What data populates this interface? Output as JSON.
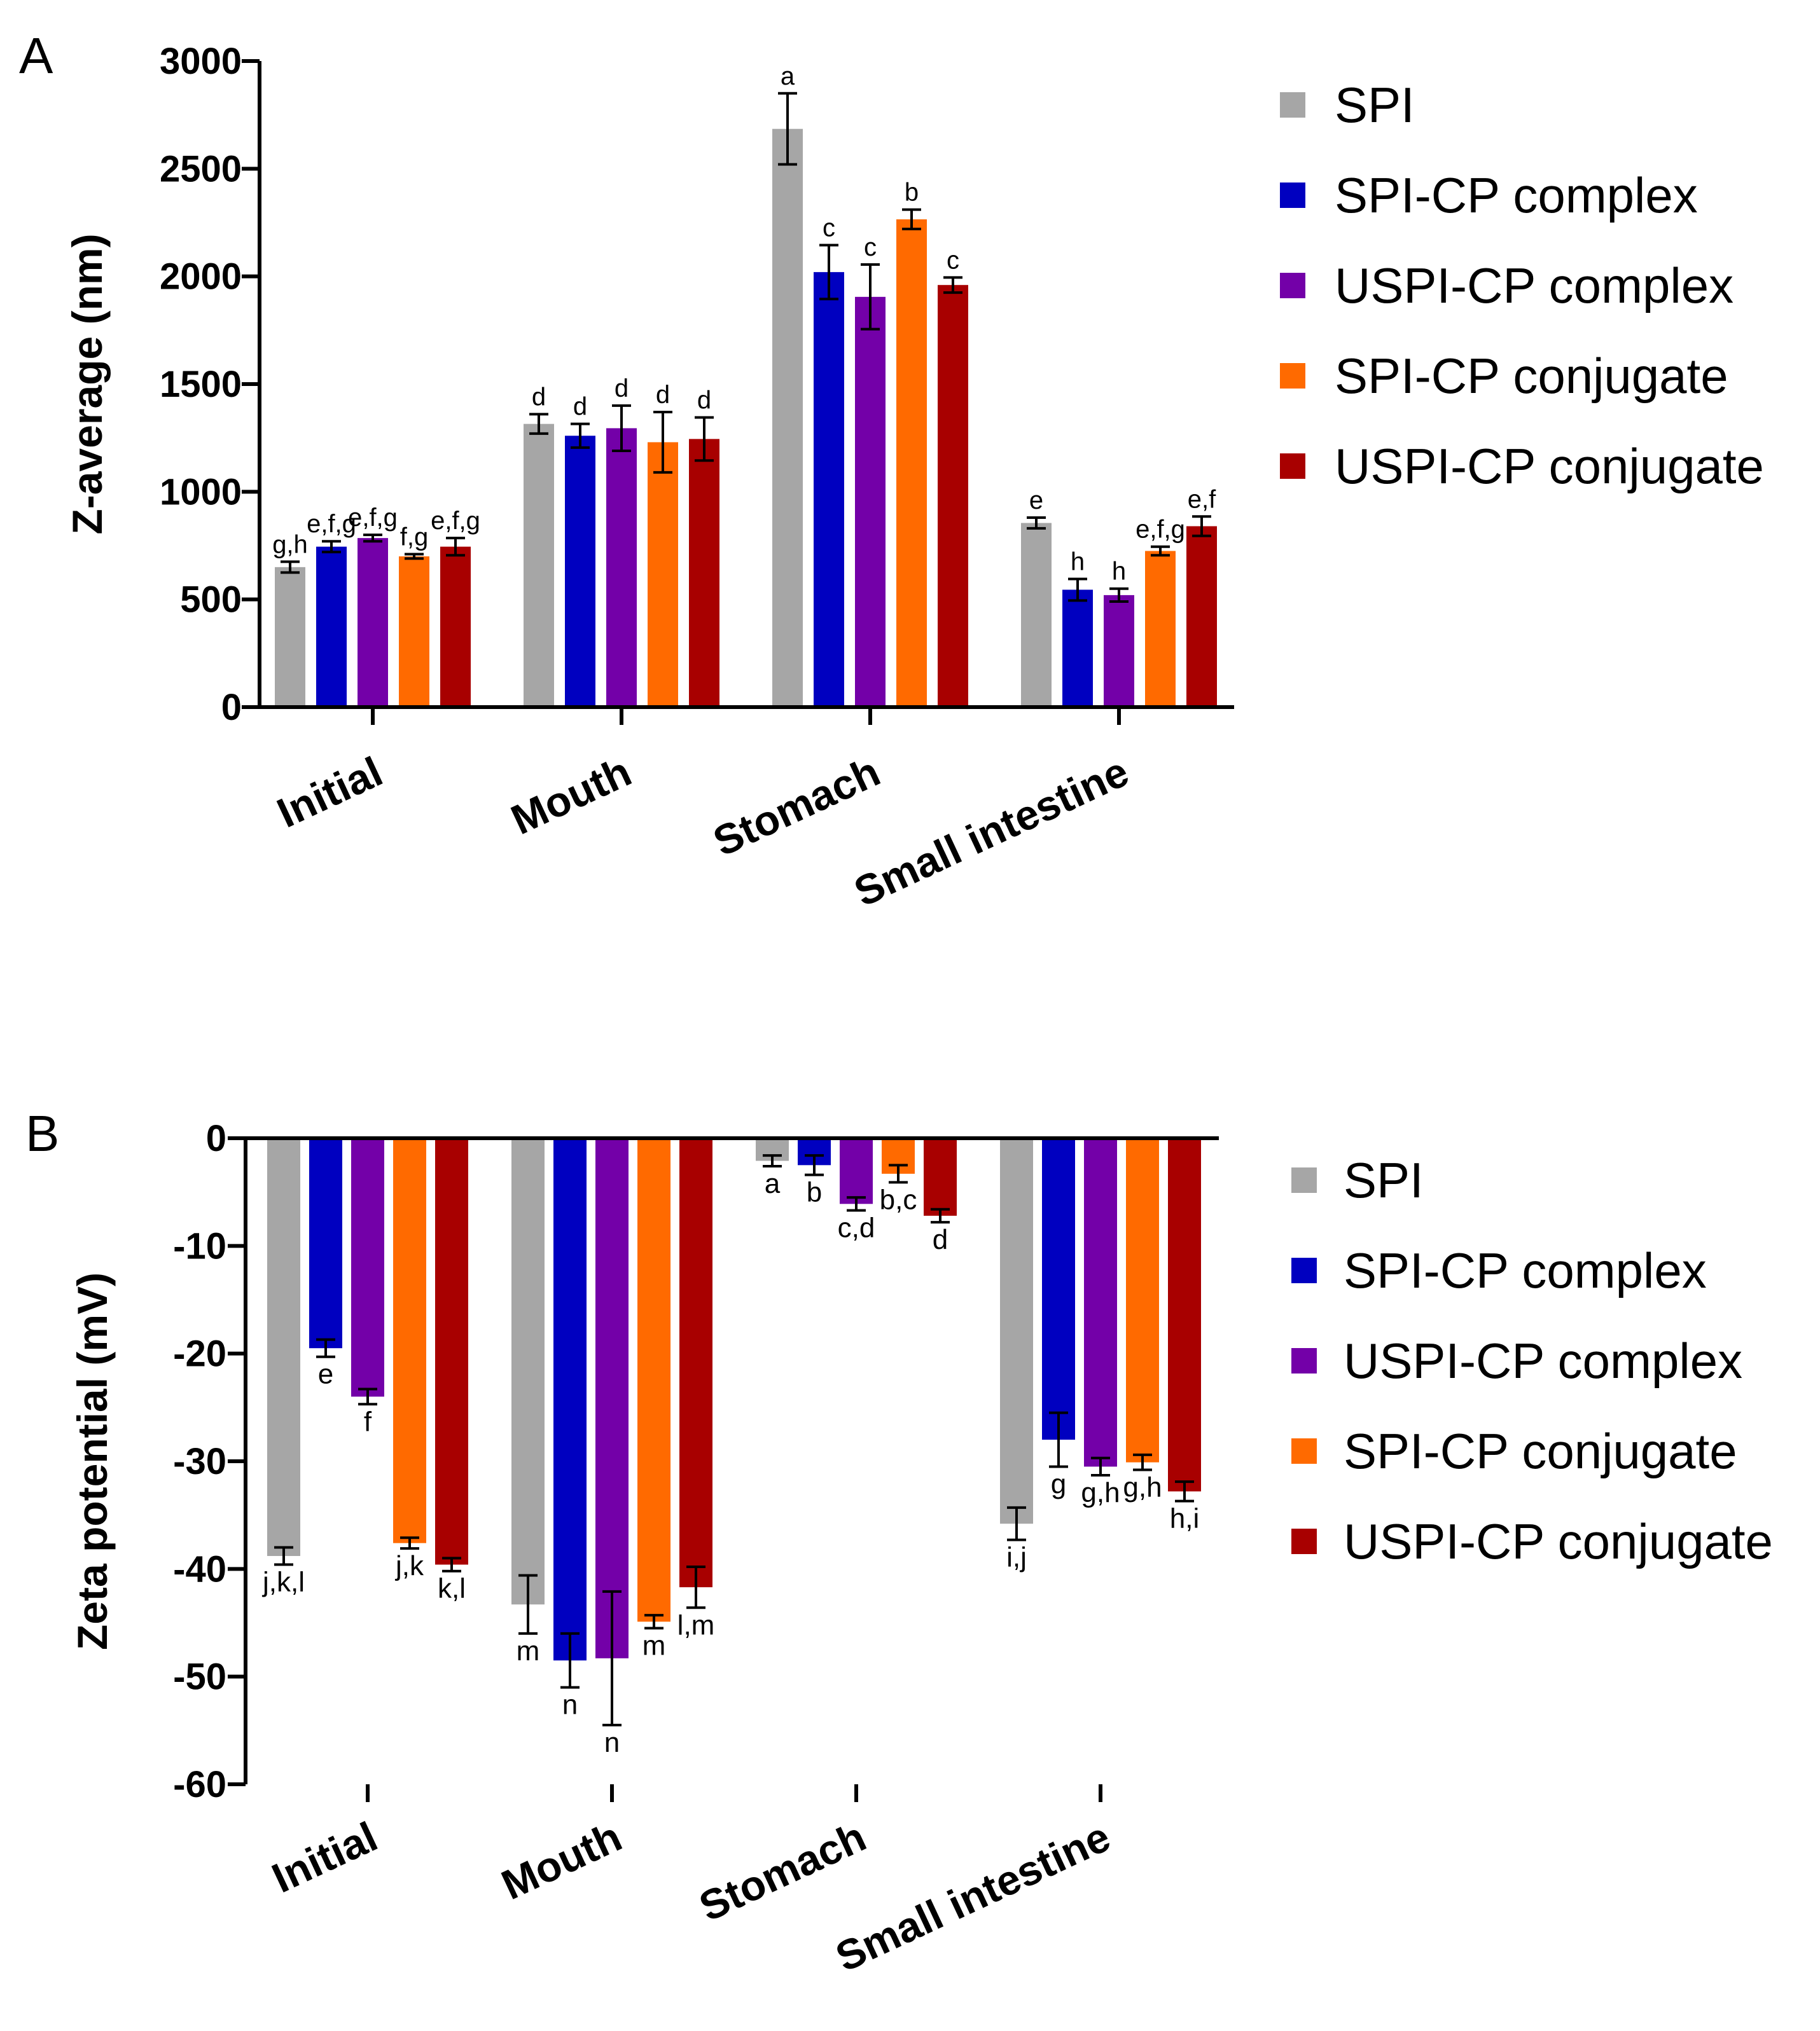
{
  "chart_data": [
    {
      "panel_label": "A",
      "type": "bar",
      "ylabel": "Z-average (nm)",
      "xlabel": "",
      "ylim": [
        0,
        3000
      ],
      "yticks": [
        0,
        500,
        1000,
        1500,
        2000,
        2500,
        3000
      ],
      "ytick_labels": [
        "0",
        "500",
        "1000",
        "1500",
        "2000",
        "2500",
        "3000"
      ],
      "categories": [
        "Initial",
        "Mouth",
        "Stomach",
        "Small intestine"
      ],
      "legend_position": "right",
      "series": [
        {
          "name": "SPI",
          "color": "#a6a6a6",
          "values": [
            650,
            1315,
            2685,
            855
          ],
          "errors": [
            25,
            45,
            165,
            25
          ],
          "letters": [
            "g,h",
            "d",
            "a",
            "e"
          ]
        },
        {
          "name": "SPI-CP complex",
          "color": "#0000c0",
          "values": [
            745,
            1260,
            2020,
            545
          ],
          "errors": [
            25,
            55,
            125,
            50
          ],
          "letters": [
            "e,f,g",
            "d",
            "c",
            "h"
          ]
        },
        {
          "name": "USPI-CP complex",
          "color": "#7300a8",
          "values": [
            785,
            1295,
            1905,
            520
          ],
          "errors": [
            15,
            105,
            150,
            30
          ],
          "letters": [
            "e,f,g",
            "d",
            "c",
            "h"
          ]
        },
        {
          "name": "SPI-CP conjugate",
          "color": "#ff6a00",
          "values": [
            700,
            1230,
            2265,
            725
          ],
          "errors": [
            10,
            140,
            45,
            20
          ],
          "letters": [
            "f,g",
            "d",
            "b",
            "e,f,g"
          ]
        },
        {
          "name": "USPI-CP conjugate",
          "color": "#a80000",
          "values": [
            745,
            1245,
            1960,
            840
          ],
          "errors": [
            40,
            100,
            35,
            45
          ],
          "letters": [
            "e,f,g",
            "d",
            "c",
            "e,f"
          ]
        }
      ]
    },
    {
      "panel_label": "B",
      "type": "bar",
      "ylabel": "Zeta potential (mV)",
      "xlabel": "",
      "ylim": [
        -60,
        0
      ],
      "yticks": [
        0,
        -10,
        -20,
        -30,
        -40,
        -50,
        -60
      ],
      "ytick_labels": [
        "0",
        "-10",
        "-20",
        "-30",
        "-40",
        "-50",
        "-60"
      ],
      "categories": [
        "Initial",
        "Mouth",
        "Stomach",
        "Small intestine"
      ],
      "legend_position": "right",
      "series": [
        {
          "name": "SPI",
          "color": "#a6a6a6",
          "values": [
            -38.8,
            -43.3,
            -2.1,
            -35.8
          ],
          "errors": [
            0.8,
            2.7,
            0.5,
            1.5
          ],
          "letters": [
            "j,k,l",
            "m",
            "a",
            "i,j"
          ]
        },
        {
          "name": "SPI-CP complex",
          "color": "#0000c0",
          "values": [
            -19.5,
            -48.5,
            -2.5,
            -28.0
          ],
          "errors": [
            0.8,
            2.5,
            0.9,
            2.5
          ],
          "letters": [
            "e",
            "n",
            "b",
            "g"
          ]
        },
        {
          "name": "USPI-CP complex",
          "color": "#7300a8",
          "values": [
            -24.0,
            -48.3,
            -6.1,
            -30.5
          ],
          "errors": [
            0.7,
            6.2,
            0.6,
            0.8
          ],
          "letters": [
            "f",
            "n",
            "c,d",
            "g,h"
          ]
        },
        {
          "name": "SPI-CP conjugate",
          "color": "#ff6a00",
          "values": [
            -37.6,
            -44.9,
            -3.3,
            -30.1
          ],
          "errors": [
            0.5,
            0.6,
            0.8,
            0.7
          ],
          "letters": [
            "j,k",
            "m",
            "b,c",
            "g,h"
          ]
        },
        {
          "name": "USPI-CP conjugate",
          "color": "#a80000",
          "values": [
            -39.6,
            -41.7,
            -7.2,
            -32.8
          ],
          "errors": [
            0.6,
            1.9,
            0.6,
            0.9
          ],
          "letters": [
            "k,l",
            "l,m",
            "d",
            "h,i"
          ]
        }
      ]
    }
  ]
}
